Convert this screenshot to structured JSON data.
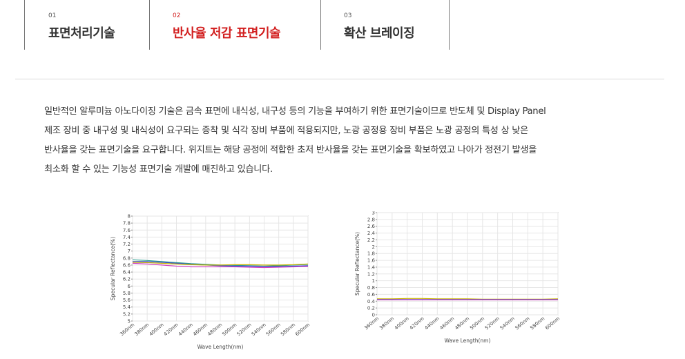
{
  "tabs": [
    {
      "num": "01",
      "label": "표면처리기술",
      "active": false
    },
    {
      "num": "02",
      "label": "반사율 저감 표면기술",
      "active": true
    },
    {
      "num": "03",
      "label": "확산 브레이징",
      "active": false
    }
  ],
  "description": [
    "일반적인 알루미늄 아노다이징 기술은 금속 표면에 내식성, 내구성 등의 기능을 부여하기 위한 표면기술이므로 반도체 및 Display Panel",
    "제조 장비 중 내구성 및 내식성이 요구되는 증착 및 식각 장비 부품에 적용되지만, 노광 공정용 장비 부품은 노광 공정의 특성 상 낮은",
    "반사율을 갖는 표면기술을 요구합니다. 위지트는 해당 공정에 적합한 초저 반사율을 갖는 표면기술을 확보하였고 나아가 정전기 발생을",
    "최소화 할 수 있는 기능성 표면기술 개발에 매진하고 있습니다."
  ],
  "chart_data": [
    {
      "type": "line",
      "xlabel": "Wave Length(nm)",
      "ylabel": "Specular Reflectance(%)",
      "x": [
        360,
        380,
        400,
        420,
        440,
        460,
        480,
        500,
        520,
        540,
        560,
        580,
        600
      ],
      "x_ticks": [
        "360nm",
        "380nm",
        "400nm",
        "420nm",
        "440nm",
        "460nm",
        "480nm",
        "500nm",
        "520nm",
        "540nm",
        "560nm",
        "580nm",
        "600nm"
      ],
      "ylim": [
        5,
        8
      ],
      "y_ticks": [
        "5",
        "5.2",
        "5.4",
        "5.6",
        "5.8",
        "6",
        "6.2",
        "6.4",
        "6.6",
        "6.8",
        "7",
        "7.2",
        "7.4",
        "7.6",
        "7.8",
        "8"
      ],
      "y_tick_values": [
        5,
        5.2,
        5.4,
        5.6,
        5.8,
        6,
        6.2,
        6.4,
        6.6,
        6.8,
        7,
        7.2,
        7.4,
        7.6,
        7.8,
        8
      ],
      "grid": true,
      "series": [
        {
          "color": "#2a9d8f",
          "values": [
            6.75,
            6.73,
            6.7,
            6.67,
            6.64,
            6.62,
            6.6,
            6.59,
            6.58,
            6.57,
            6.58,
            6.6,
            6.62
          ]
        },
        {
          "color": "#3a4fd0",
          "values": [
            6.7,
            6.7,
            6.68,
            6.65,
            6.62,
            6.6,
            6.58,
            6.57,
            6.57,
            6.56,
            6.56,
            6.57,
            6.58
          ]
        },
        {
          "color": "#c8b400",
          "values": [
            6.68,
            6.67,
            6.65,
            6.63,
            6.61,
            6.6,
            6.6,
            6.61,
            6.61,
            6.6,
            6.6,
            6.61,
            6.63
          ]
        },
        {
          "color": "#d040c0",
          "values": [
            6.65,
            6.63,
            6.6,
            6.57,
            6.55,
            6.55,
            6.55,
            6.55,
            6.54,
            6.53,
            6.54,
            6.55,
            6.56
          ]
        }
      ]
    },
    {
      "type": "line",
      "xlabel": "Wave Length(nm)",
      "ylabel": "Specular Reflectance(%)",
      "x": [
        360,
        380,
        400,
        420,
        440,
        460,
        480,
        500,
        520,
        540,
        560,
        580,
        600
      ],
      "x_ticks": [
        "360nm",
        "380nm",
        "400nm",
        "420nm",
        "440nm",
        "460nm",
        "480nm",
        "500nm",
        "520nm",
        "540nm",
        "560nm",
        "580nm",
        "600nm"
      ],
      "ylim": [
        0,
        3
      ],
      "y_ticks": [
        "0",
        "0.2",
        "0.4",
        "0.6",
        "0.8",
        "1",
        "1.2",
        "1.4",
        "1.6",
        "1.8",
        "2",
        "2.2",
        "2.4",
        "2.6",
        "2.8",
        "3"
      ],
      "y_tick_values": [
        0,
        0.2,
        0.4,
        0.6,
        0.8,
        1,
        1.2,
        1.4,
        1.6,
        1.8,
        2,
        2.2,
        2.4,
        2.6,
        2.8,
        3
      ],
      "grid": true,
      "series": [
        {
          "color": "#c8b400",
          "values": [
            0.47,
            0.47,
            0.48,
            0.48,
            0.47,
            0.47,
            0.47,
            0.46,
            0.46,
            0.46,
            0.46,
            0.46,
            0.47
          ]
        },
        {
          "color": "#3a4fd0",
          "values": [
            0.45,
            0.45,
            0.45,
            0.45,
            0.45,
            0.45,
            0.45,
            0.45,
            0.45,
            0.45,
            0.45,
            0.45,
            0.45
          ]
        },
        {
          "color": "#d040c0",
          "values": [
            0.44,
            0.44,
            0.44,
            0.44,
            0.44,
            0.44,
            0.44,
            0.44,
            0.44,
            0.44,
            0.44,
            0.44,
            0.44
          ]
        }
      ]
    }
  ]
}
